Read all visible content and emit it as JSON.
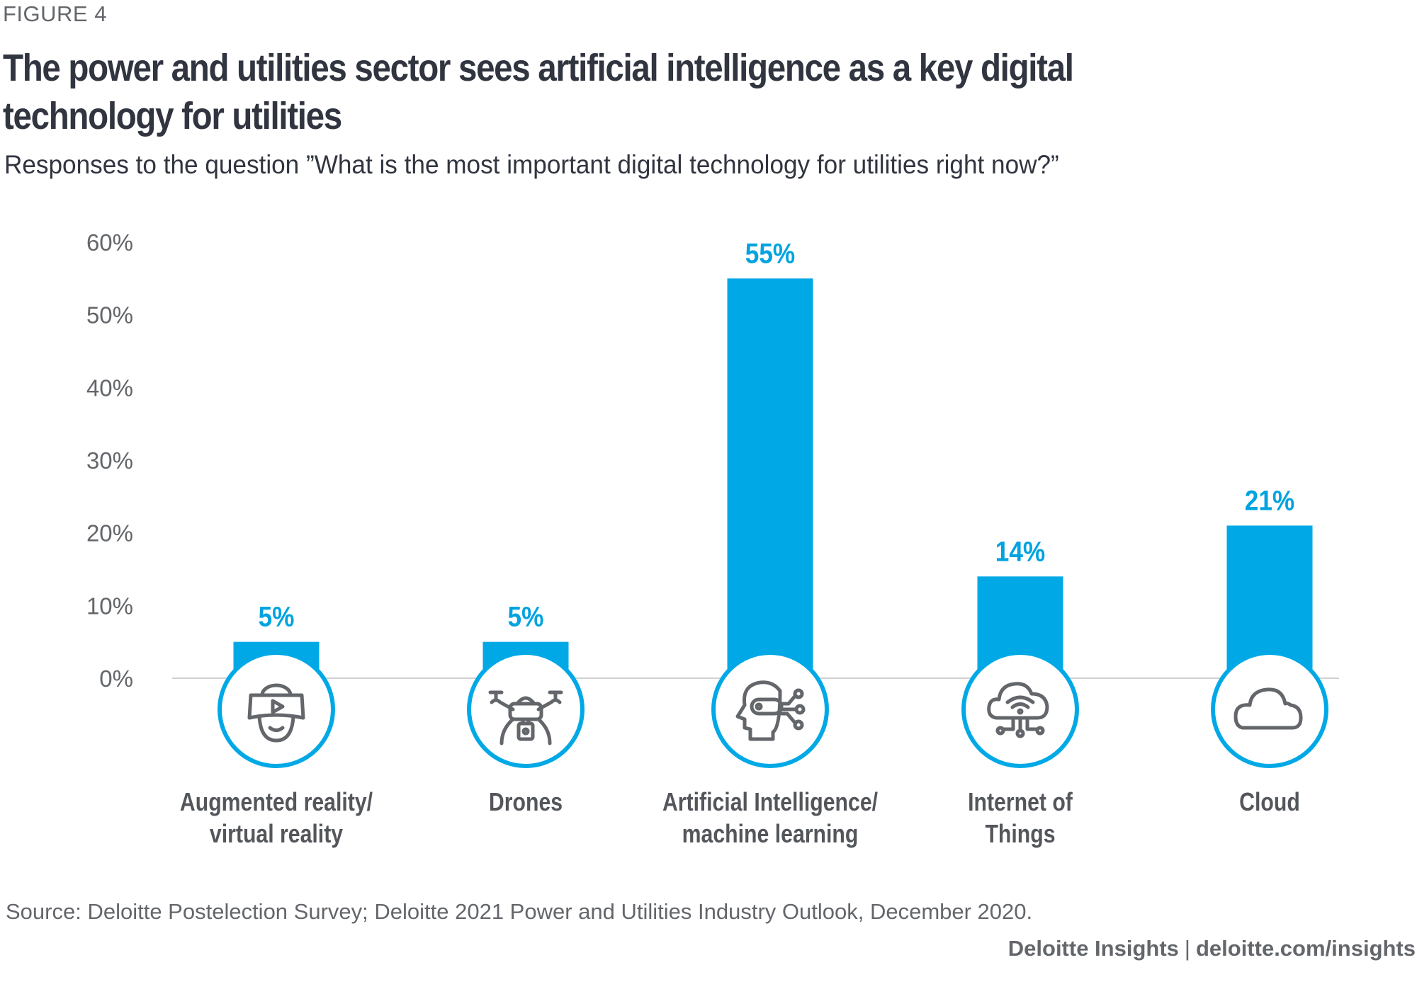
{
  "figure_label": "FIGURE 4",
  "title": "The power and utilities sector sees artificial intelligence as a key digital technology for utilities",
  "subtitle": "Responses to the question ”What is the most important digital technology for utilities right now?”",
  "source": "Source:  Deloitte Postelection Survey; Deloitte 2021 Power and Utilities Industry Outlook, December 2020.",
  "brand": {
    "name": "Deloitte Insights",
    "separator": "|",
    "url": "deloitte.com/insights"
  },
  "colors": {
    "bar": "#00a9e6",
    "label_value": "#00a3e0",
    "axis_text": "#63666a",
    "category_text": "#53565a",
    "icon_stroke": "#63666a",
    "baseline": "#d0d0d0"
  },
  "chart_data": {
    "type": "bar",
    "title": "The power and utilities sector sees artificial intelligence as a key digital technology for utilities",
    "subtitle": "Responses to the question ”What is the most important digital technology for utilities right now?”",
    "xlabel": "",
    "ylabel": "",
    "ylim": [
      0,
      60
    ],
    "yticks": [
      0,
      10,
      20,
      30,
      40,
      50,
      60
    ],
    "ytick_labels": [
      "0%",
      "10%",
      "20%",
      "30%",
      "40%",
      "50%",
      "60%"
    ],
    "grid": false,
    "legend": "none",
    "categories": [
      "Augmented reality/ virtual reality",
      "Drones",
      "Artificial Intelligence/ machine learning",
      "Internet of Things",
      "Cloud"
    ],
    "category_lines": [
      [
        "Augmented reality/",
        "virtual reality"
      ],
      [
        "Drones"
      ],
      [
        "Artificial Intelligence/",
        "machine learning"
      ],
      [
        "Internet of",
        "Things"
      ],
      [
        "Cloud"
      ]
    ],
    "category_icons": [
      "vr-headset-icon",
      "drone-icon",
      "ai-head-icon",
      "iot-cloud-icon",
      "cloud-icon"
    ],
    "values": [
      5,
      5,
      55,
      14,
      21
    ],
    "data_labels": [
      "5%",
      "5%",
      "55%",
      "14%",
      "21%"
    ]
  }
}
